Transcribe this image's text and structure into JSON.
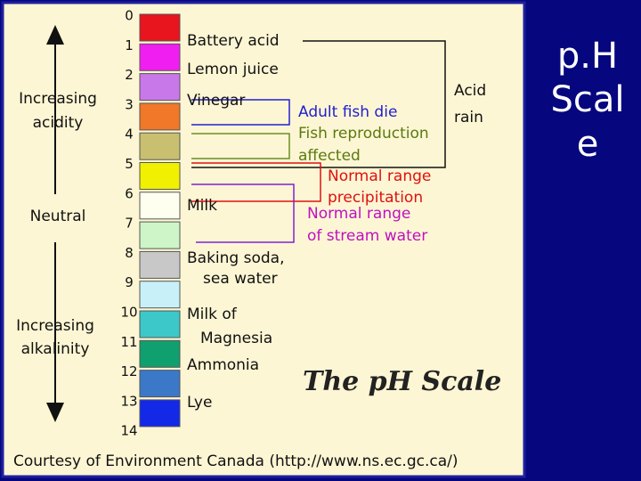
{
  "slide_title": [
    "p.H",
    "Scal",
    "e"
  ],
  "figure": {
    "numbers": [
      0,
      1,
      2,
      3,
      4,
      5,
      6,
      7,
      8,
      9,
      10,
      11,
      12,
      13,
      14
    ],
    "colors": [
      "#e8141e",
      "#f01ef0",
      "#c878e8",
      "#f07828",
      "#c8c070",
      "#f0f000",
      "#fffff0",
      "#cdf5c8",
      "#c8c8c8",
      "#c8f0f8",
      "#3cc8c8",
      "#10a070",
      "#3c78c8",
      "#1428e8"
    ],
    "left_labels": [
      "Increasing",
      "acidity",
      "Neutral",
      "Increasing",
      "alkalinity"
    ],
    "substances": [
      "Battery acid",
      "Lemon juice",
      "Vinegar",
      "Milk",
      "Baking soda,",
      "sea water",
      "Milk of",
      "Magnesia",
      "Ammonia",
      "Lye"
    ],
    "acid_rain": [
      "Acid",
      "rain"
    ],
    "adult_fish": "Adult fish die",
    "fish_reproduction": [
      "Fish reproduction",
      "affected"
    ],
    "precipitation": [
      "Normal range",
      "precipitation"
    ],
    "stream_water": [
      "Normal range",
      "of stream water"
    ],
    "title": "The pH Scale",
    "credit": "Courtesy of Environment Canada (http://www.ns.ec.gc.ca/)"
  }
}
